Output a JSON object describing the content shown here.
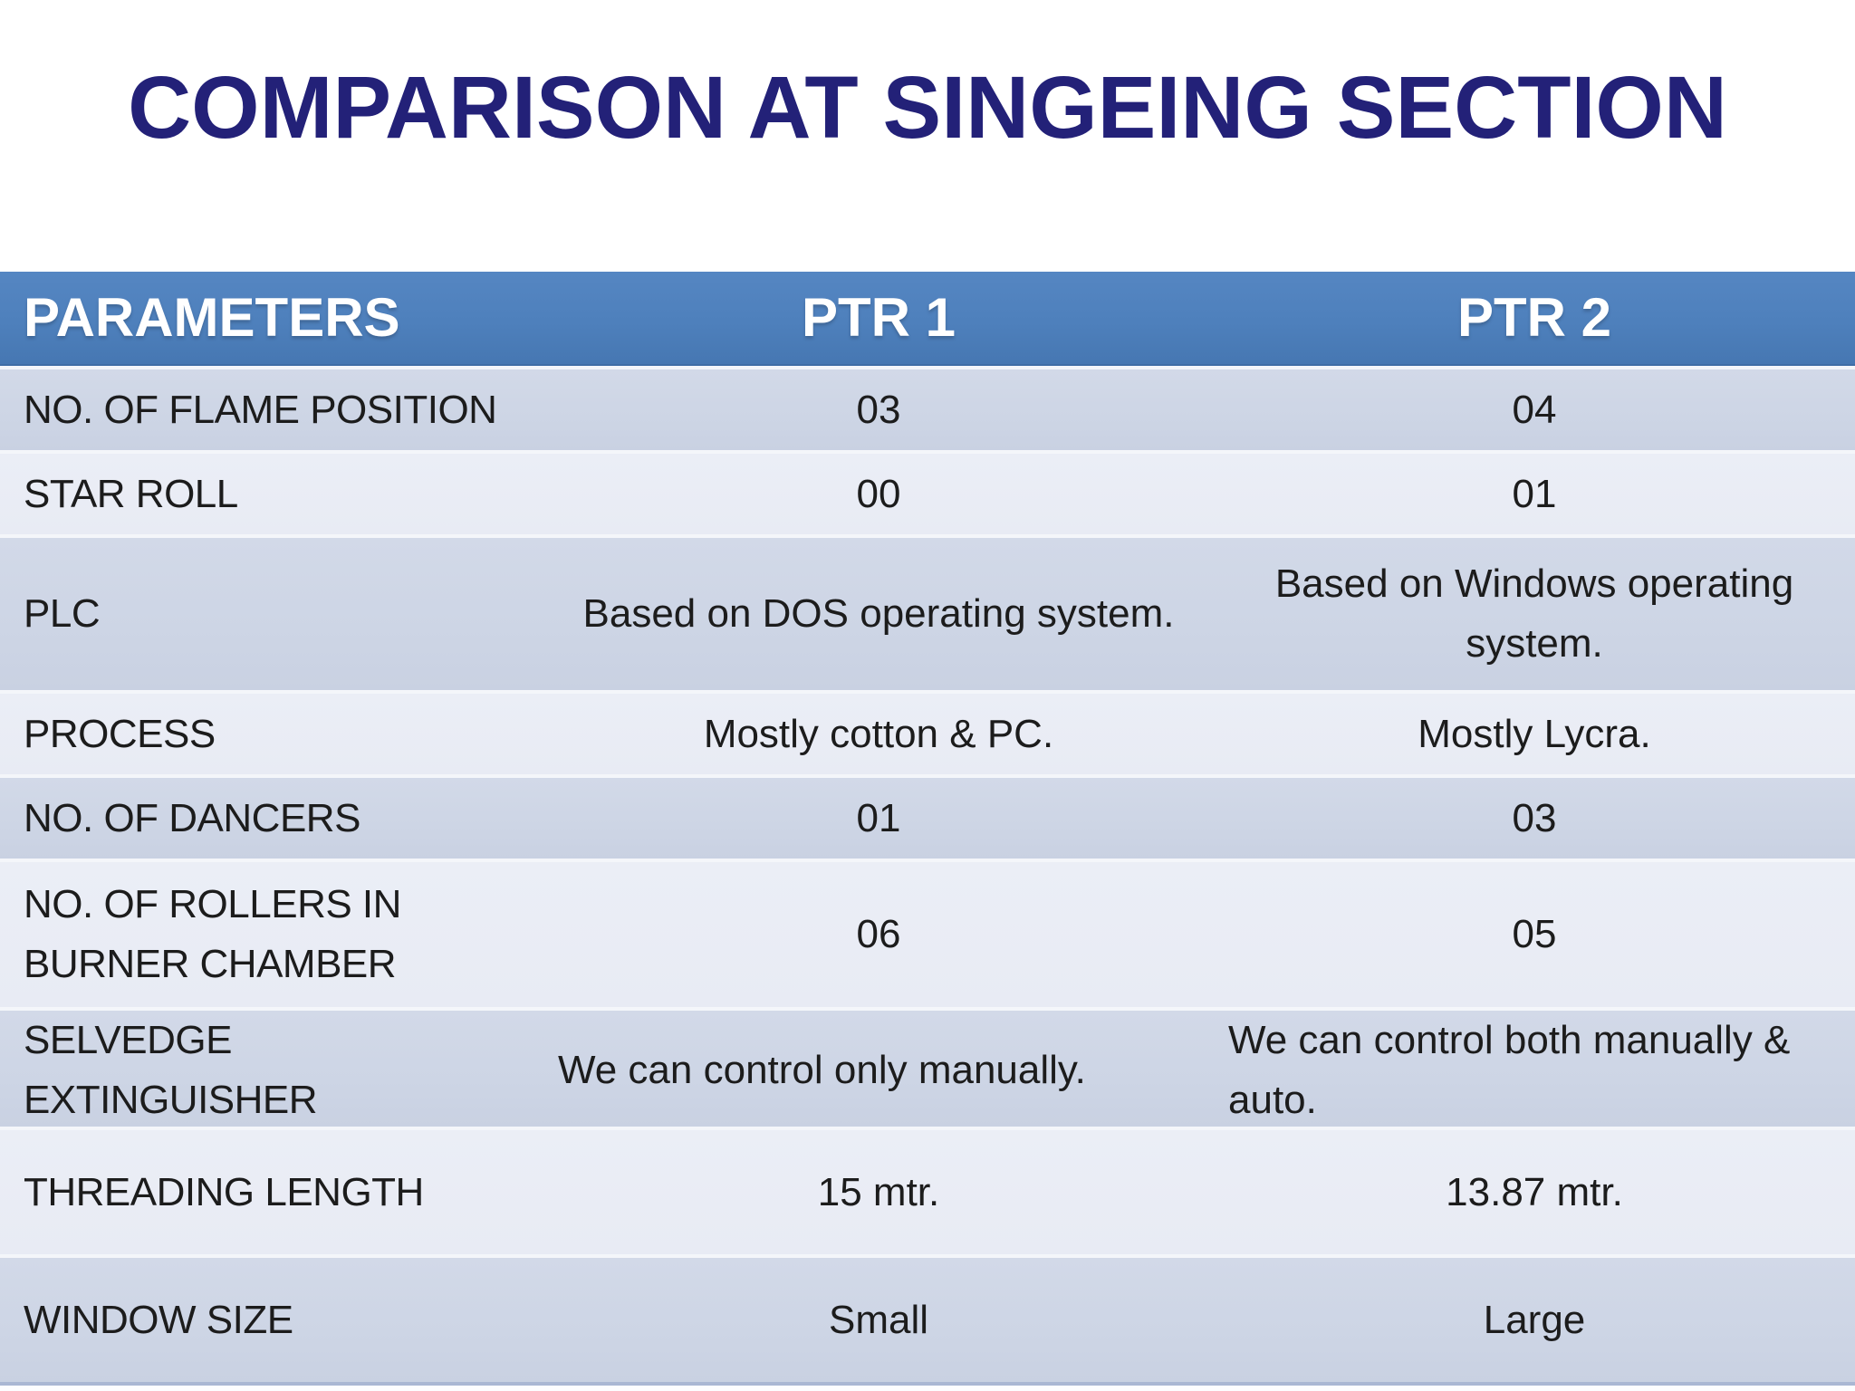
{
  "slide": {
    "title": "COMPARISON AT SINGEING SECTION",
    "colors": {
      "title_text": "#232178",
      "header_bg": "#4F81BD",
      "header_text": "#FFFFFF",
      "row_band_dark": "#CDD5E5",
      "row_band_light": "#E8EBF4",
      "body_text": "#1C1C1C"
    }
  },
  "table": {
    "columns": [
      "PARAMETERS",
      "PTR 1",
      "PTR 2"
    ],
    "rows": [
      {
        "parameter": "NO. OF FLAME POSITION",
        "ptr1": "03",
        "ptr2": "04"
      },
      {
        "parameter": "STAR ROLL",
        "ptr1": "00",
        "ptr2": "01"
      },
      {
        "parameter": "PLC",
        "ptr1": "Based on DOS operating system.",
        "ptr2": "Based on Windows operating system."
      },
      {
        "parameter": "PROCESS",
        "ptr1": "Mostly cotton & PC.",
        "ptr2": "Mostly Lycra."
      },
      {
        "parameter": "NO. OF DANCERS",
        "ptr1": "01",
        "ptr2": "03"
      },
      {
        "parameter": "NO. OF ROLLERS IN BURNER CHAMBER",
        "ptr1": "06",
        "ptr2": "05"
      },
      {
        "parameter": "SELVEDGE EXTINGUISHER",
        "ptr1": "We can control only manually.",
        "ptr2": "We can control both manually & auto."
      },
      {
        "parameter": "THREADING LENGTH",
        "ptr1": "15 mtr.",
        "ptr2": "13.87 mtr."
      },
      {
        "parameter": "WINDOW SIZE",
        "ptr1": "Small",
        "ptr2": "Large"
      }
    ]
  }
}
